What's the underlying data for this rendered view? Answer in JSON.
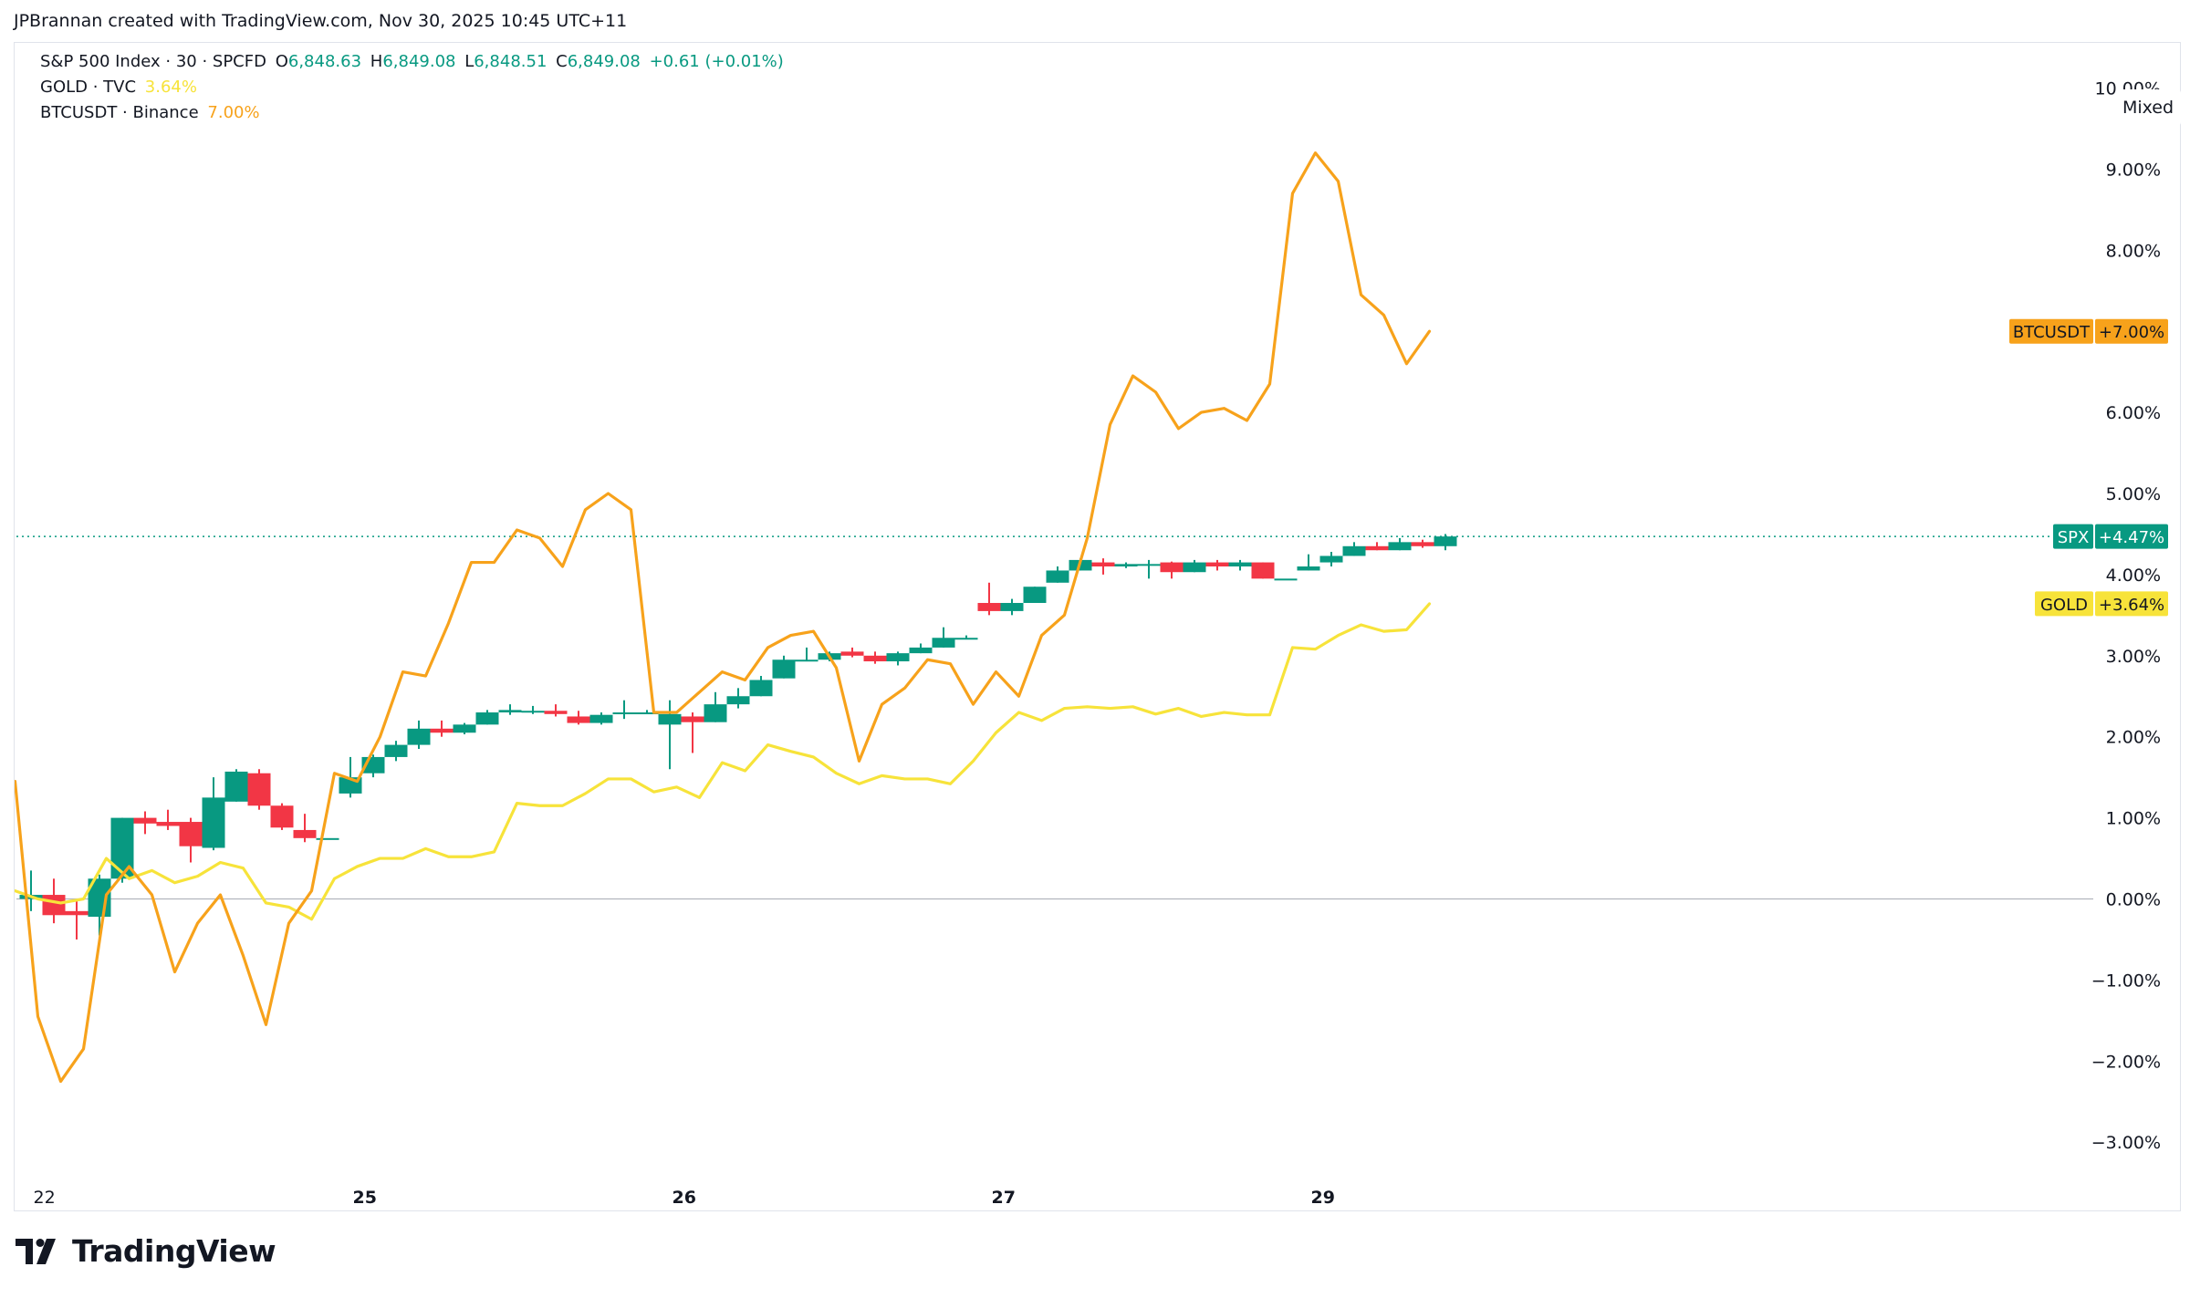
{
  "attribution": "JPBrannan created with TradingView.com, Nov 30, 2025 10:45 UTC+11",
  "brand": "TradingView",
  "mixed_label": "Mixed",
  "colors": {
    "up": "#089981",
    "down": "#f23645",
    "gold": "#f7e33a",
    "btc": "#f7a21b",
    "grid": "#e0e3eb"
  },
  "legend": {
    "spx": {
      "name": "S&P 500 Index · 30 · SPCFD",
      "o_label": "O",
      "o": "6,848.63",
      "h_label": "H",
      "h": "6,849.08",
      "l_label": "L",
      "l": "6,848.51",
      "c_label": "C",
      "c": "6,849.08",
      "change": "+0.61 (+0.01%)"
    },
    "gold": {
      "name": "GOLD · TVC",
      "value": "3.64%"
    },
    "btc": {
      "name": "BTCUSDT · Binance",
      "value": "7.00%"
    }
  },
  "chart_data": {
    "type": "line",
    "y_unit": "%",
    "ylim": [
      -3.5,
      10.3
    ],
    "y_ticks": [
      {
        "value": 10,
        "label": "10.00%"
      },
      {
        "value": 9,
        "label": "9.00%"
      },
      {
        "value": 8,
        "label": "8.00%"
      },
      {
        "value": 6,
        "label": "6.00%"
      },
      {
        "value": 5,
        "label": "5.00%"
      },
      {
        "value": 4,
        "label": "4.00%"
      },
      {
        "value": 3,
        "label": "3.00%"
      },
      {
        "value": 2,
        "label": "2.00%"
      },
      {
        "value": 1,
        "label": "1.00%"
      },
      {
        "value": 0,
        "label": "0.00%"
      },
      {
        "value": -1,
        "label": "−1.00%"
      },
      {
        "value": -2,
        "label": "−2.00%"
      },
      {
        "value": -3,
        "label": "−3.00%"
      }
    ],
    "x_ticks": [
      {
        "index": 0.5,
        "label": "22"
      },
      {
        "index": 14.5,
        "label": "25"
      },
      {
        "index": 28.5,
        "label": "26"
      },
      {
        "index": 42.5,
        "label": "27"
      },
      {
        "index": 56.5,
        "label": "29"
      }
    ],
    "x_count": 64,
    "spx_last": 4.47,
    "series": [
      {
        "name": "SPX",
        "kind": "candlestick",
        "badge": "+4.47%",
        "candles": [
          {
            "o": 0.0,
            "h": 0.35,
            "l": -0.15,
            "c": 0.05
          },
          {
            "o": 0.05,
            "h": 0.25,
            "l": -0.3,
            "c": -0.2
          },
          {
            "o": -0.15,
            "h": 0.0,
            "l": -0.5,
            "c": -0.2
          },
          {
            "o": -0.22,
            "h": 0.3,
            "l": -0.45,
            "c": 0.25
          },
          {
            "o": 0.25,
            "h": 1.0,
            "l": 0.2,
            "c": 1.0
          },
          {
            "o": 1.0,
            "h": 1.08,
            "l": 0.8,
            "c": 0.93
          },
          {
            "o": 0.95,
            "h": 1.1,
            "l": 0.85,
            "c": 0.9
          },
          {
            "o": 0.95,
            "h": 1.0,
            "l": 0.45,
            "c": 0.65
          },
          {
            "o": 0.63,
            "h": 1.5,
            "l": 0.6,
            "c": 1.25
          },
          {
            "o": 1.2,
            "h": 1.6,
            "l": 1.2,
            "c": 1.57
          },
          {
            "o": 1.55,
            "h": 1.6,
            "l": 1.1,
            "c": 1.15
          },
          {
            "o": 1.15,
            "h": 1.18,
            "l": 0.85,
            "c": 0.88
          },
          {
            "o": 0.85,
            "h": 1.05,
            "l": 0.7,
            "c": 0.75
          },
          {
            "o": 0.75,
            "h": 0.75,
            "l": 0.75,
            "c": 0.75
          },
          {
            "o": 1.3,
            "h": 1.75,
            "l": 1.25,
            "c": 1.5
          },
          {
            "o": 1.55,
            "h": 1.78,
            "l": 1.5,
            "c": 1.75
          },
          {
            "o": 1.75,
            "h": 1.95,
            "l": 1.7,
            "c": 1.9
          },
          {
            "o": 1.9,
            "h": 2.2,
            "l": 1.85,
            "c": 2.1
          },
          {
            "o": 2.1,
            "h": 2.2,
            "l": 2.0,
            "c": 2.05
          },
          {
            "o": 2.05,
            "h": 2.17,
            "l": 2.03,
            "c": 2.15
          },
          {
            "o": 2.15,
            "h": 2.33,
            "l": 2.15,
            "c": 2.3
          },
          {
            "o": 2.3,
            "h": 2.4,
            "l": 2.27,
            "c": 2.33
          },
          {
            "o": 2.32,
            "h": 2.38,
            "l": 2.28,
            "c": 2.32
          },
          {
            "o": 2.32,
            "h": 2.4,
            "l": 2.25,
            "c": 2.28
          },
          {
            "o": 2.25,
            "h": 2.32,
            "l": 2.15,
            "c": 2.17
          },
          {
            "o": 2.17,
            "h": 2.3,
            "l": 2.15,
            "c": 2.27
          },
          {
            "o": 2.28,
            "h": 2.45,
            "l": 2.22,
            "c": 2.3
          },
          {
            "o": 2.3,
            "h": 2.33,
            "l": 2.28,
            "c": 2.3
          },
          {
            "o": 2.15,
            "h": 2.45,
            "l": 1.6,
            "c": 2.28
          },
          {
            "o": 2.25,
            "h": 2.3,
            "l": 1.8,
            "c": 2.18
          },
          {
            "o": 2.18,
            "h": 2.55,
            "l": 2.18,
            "c": 2.4
          },
          {
            "o": 2.4,
            "h": 2.6,
            "l": 2.35,
            "c": 2.5
          },
          {
            "o": 2.5,
            "h": 2.75,
            "l": 2.5,
            "c": 2.7
          },
          {
            "o": 2.72,
            "h": 3.0,
            "l": 2.72,
            "c": 2.95
          },
          {
            "o": 2.95,
            "h": 3.1,
            "l": 2.93,
            "c": 2.95
          },
          {
            "o": 2.95,
            "h": 3.05,
            "l": 2.93,
            "c": 3.03
          },
          {
            "o": 3.05,
            "h": 3.1,
            "l": 2.98,
            "c": 3.0
          },
          {
            "o": 3.0,
            "h": 3.05,
            "l": 2.9,
            "c": 2.93
          },
          {
            "o": 2.93,
            "h": 3.05,
            "l": 2.88,
            "c": 3.03
          },
          {
            "o": 3.03,
            "h": 3.15,
            "l": 3.03,
            "c": 3.1
          },
          {
            "o": 3.1,
            "h": 3.35,
            "l": 3.1,
            "c": 3.22
          },
          {
            "o": 3.22,
            "h": 3.25,
            "l": 3.2,
            "c": 3.22
          },
          {
            "o": 3.65,
            "h": 3.9,
            "l": 3.5,
            "c": 3.55
          },
          {
            "o": 3.55,
            "h": 3.7,
            "l": 3.5,
            "c": 3.65
          },
          {
            "o": 3.65,
            "h": 3.85,
            "l": 3.65,
            "c": 3.85
          },
          {
            "o": 3.9,
            "h": 4.1,
            "l": 3.9,
            "c": 4.05
          },
          {
            "o": 4.05,
            "h": 4.2,
            "l": 4.05,
            "c": 4.18
          },
          {
            "o": 4.15,
            "h": 4.2,
            "l": 4.0,
            "c": 4.1
          },
          {
            "o": 4.1,
            "h": 4.15,
            "l": 4.08,
            "c": 4.13
          },
          {
            "o": 4.13,
            "h": 4.18,
            "l": 3.95,
            "c": 4.13
          },
          {
            "o": 4.15,
            "h": 4.16,
            "l": 3.95,
            "c": 4.03
          },
          {
            "o": 4.03,
            "h": 4.18,
            "l": 4.03,
            "c": 4.15
          },
          {
            "o": 4.15,
            "h": 4.18,
            "l": 4.05,
            "c": 4.1
          },
          {
            "o": 4.1,
            "h": 4.18,
            "l": 4.05,
            "c": 4.15
          },
          {
            "o": 4.15,
            "h": 4.15,
            "l": 3.95,
            "c": 3.95
          },
          {
            "o": 3.95,
            "h": 3.95,
            "l": 3.95,
            "c": 3.95
          },
          {
            "o": 4.05,
            "h": 4.25,
            "l": 4.05,
            "c": 4.1
          },
          {
            "o": 4.15,
            "h": 4.28,
            "l": 4.1,
            "c": 4.23
          },
          {
            "o": 4.23,
            "h": 4.4,
            "l": 4.23,
            "c": 4.35
          },
          {
            "o": 4.35,
            "h": 4.4,
            "l": 4.3,
            "c": 4.3
          },
          {
            "o": 4.3,
            "h": 4.45,
            "l": 4.3,
            "c": 4.4
          },
          {
            "o": 4.4,
            "h": 4.43,
            "l": 4.33,
            "c": 4.35
          },
          {
            "o": 4.35,
            "h": 4.5,
            "l": 4.3,
            "c": 4.47
          }
        ]
      },
      {
        "name": "GOLD",
        "kind": "line",
        "badge": "+3.64%",
        "values": [
          0.1,
          0.0,
          -0.05,
          0.0,
          0.5,
          0.25,
          0.35,
          0.2,
          0.28,
          0.45,
          0.38,
          -0.05,
          -0.1,
          -0.25,
          0.25,
          0.4,
          0.5,
          0.5,
          0.62,
          0.52,
          0.52,
          0.58,
          1.18,
          1.15,
          1.15,
          1.3,
          1.48,
          1.48,
          1.32,
          1.38,
          1.25,
          1.68,
          1.58,
          1.9,
          1.82,
          1.75,
          1.55,
          1.42,
          1.52,
          1.48,
          1.48,
          1.42,
          1.7,
          2.05,
          2.3,
          2.2,
          2.35,
          2.37,
          2.35,
          2.37,
          2.28,
          2.35,
          2.25,
          2.3,
          2.27,
          2.27,
          3.1,
          3.08,
          3.25,
          3.38,
          3.3,
          3.32,
          3.64
        ]
      },
      {
        "name": "BTCUSDT",
        "kind": "line",
        "badge": "+7.00%",
        "values": [
          1.45,
          -1.45,
          -2.25,
          -1.85,
          0.05,
          0.4,
          0.05,
          -0.9,
          -0.3,
          0.05,
          -0.7,
          -1.55,
          -0.3,
          0.1,
          1.55,
          1.45,
          2.0,
          2.8,
          2.75,
          3.4,
          4.15,
          4.15,
          4.55,
          4.45,
          4.1,
          4.8,
          5.0,
          4.8,
          2.3,
          2.3,
          2.55,
          2.8,
          2.7,
          3.1,
          3.25,
          3.3,
          2.85,
          1.7,
          2.4,
          2.6,
          2.95,
          2.9,
          2.4,
          2.8,
          2.5,
          3.25,
          3.5,
          4.45,
          5.85,
          6.45,
          6.25,
          5.8,
          6.0,
          6.05,
          5.9,
          6.35,
          8.7,
          9.2,
          8.85,
          7.45,
          7.2,
          6.6,
          7.0
        ]
      }
    ]
  }
}
